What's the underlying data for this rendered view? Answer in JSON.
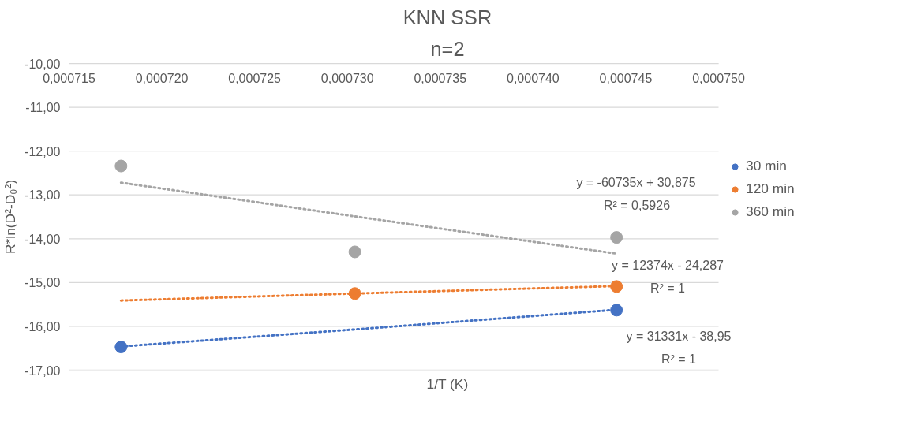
{
  "chart_data": {
    "type": "scatter",
    "title": "KNN SSR",
    "subtitle": "n=2",
    "xlabel": "1/T (K)",
    "ylabel": "R*ln(D²-D₀²)",
    "x": [
      0.0007178,
      0.0007304,
      0.0007445
    ],
    "series": [
      {
        "name": "30 min",
        "color": "#4472c4",
        "values": [
          -16.47,
          null,
          -15.63
        ]
      },
      {
        "name": "120 min",
        "color": "#ed7d31",
        "values": [
          null,
          -15.25,
          -15.09
        ]
      },
      {
        "name": "360 min",
        "color": "#a5a5a5",
        "values": [
          -12.34,
          -14.3,
          -13.97
        ]
      },
      {
        "type": "line",
        "color": "#4472c4",
        "line_style": "dotted",
        "marker": "none",
        "values": [
          -16.46,
          -16.07,
          -15.62
        ]
      },
      {
        "type": "line",
        "color": "#ed7d31",
        "line_style": "dotted",
        "marker": "none",
        "values": [
          -15.41,
          -15.25,
          -15.08
        ]
      },
      {
        "type": "line",
        "color": "#a5a5a5",
        "line_style": "dotted",
        "marker": "none",
        "values": [
          -12.72,
          -13.49,
          -14.34
        ]
      }
    ],
    "xlim": [
      0.000715,
      0.00075
    ],
    "xticks": [
      {
        "value": 0.000715,
        "label": "0,000715"
      },
      {
        "value": 0.00072,
        "label": "0,000720"
      },
      {
        "value": 0.000725,
        "label": "0,000725"
      },
      {
        "value": 0.00073,
        "label": "0,000730"
      },
      {
        "value": 0.000735,
        "label": "0,000735"
      },
      {
        "value": 0.00074,
        "label": "0,000740"
      },
      {
        "value": 0.000745,
        "label": "0,000745"
      },
      {
        "value": 0.00075,
        "label": "0,000750"
      }
    ],
    "ylim": [
      -17,
      -10
    ],
    "yticks": [
      {
        "value": -17,
        "label": "-17,00"
      },
      {
        "value": -16,
        "label": "-16,00"
      },
      {
        "value": -15,
        "label": "-15,00"
      },
      {
        "value": -14,
        "label": "-14,00"
      },
      {
        "value": -13,
        "label": "-13,00"
      },
      {
        "value": -12,
        "label": "-12,00"
      },
      {
        "value": -11,
        "label": "-11,00"
      },
      {
        "value": -10,
        "label": "-10,00"
      }
    ],
    "annotations": [
      "y = -60735x + 30,875",
      "R² = 0,5926",
      "y = 12374x - 24,287",
      "R² = 1",
      "y = 31331x - 38,95",
      "R² = 1"
    ],
    "grid": "y",
    "legend": "right",
    "marker": "circle"
  }
}
